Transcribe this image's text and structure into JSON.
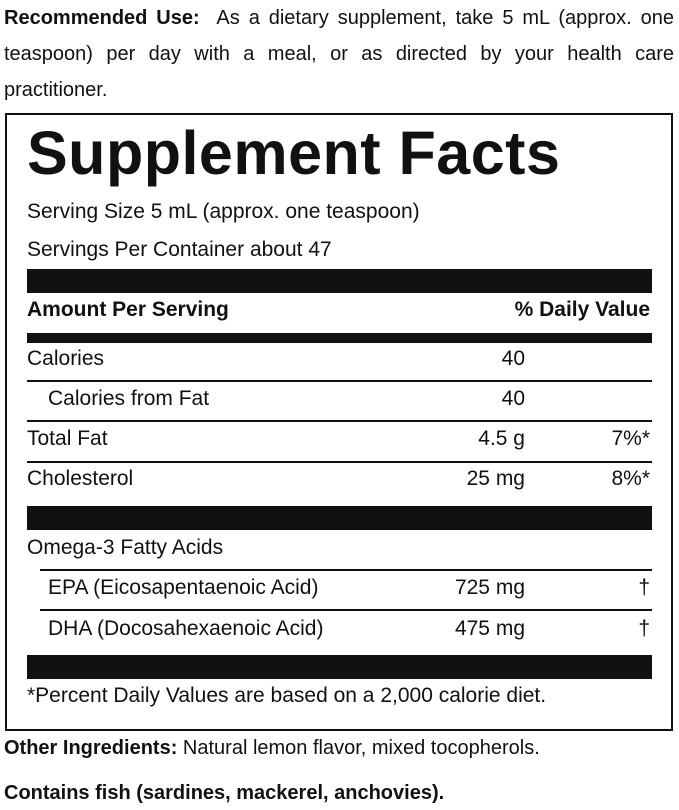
{
  "recommended_use": {
    "label": "Recommended Use:",
    "text": "As a dietary supplement, take 5 mL (approx. one teaspoon) per day with a meal, or as directed by your health care practitioner."
  },
  "facts": {
    "title": "Supplement Facts",
    "serving_size": "Serving Size 5 mL (approx. one teaspoon)",
    "servings_per_container": "Servings Per Container about 47",
    "header": [
      "Amount Per Serving",
      "% Daily Value"
    ],
    "rows": [
      [
        "Calories",
        "40",
        ""
      ],
      [
        "Calories from Fat",
        "40",
        ""
      ],
      [
        "Total Fat",
        "4.5 g",
        "7%*"
      ],
      [
        "Cholesterol",
        "25 mg",
        "8%*"
      ],
      [
        "Omega-3 Fatty Acids",
        "",
        ""
      ],
      [
        "EPA (Eicosapentaenoic Acid)",
        "725 mg",
        "†"
      ],
      [
        "DHA (Docosahexaenoic Acid)",
        "475 mg",
        "†"
      ]
    ],
    "footnote": "*Percent Daily Values are based on a 2,000 calorie diet."
  },
  "other_ingredients": {
    "label": "Other Ingredients:",
    "text": "Natural lemon flavor, mixed tocopherols."
  },
  "allergen": "Contains fish (sardines, mackerel, anchovies)."
}
